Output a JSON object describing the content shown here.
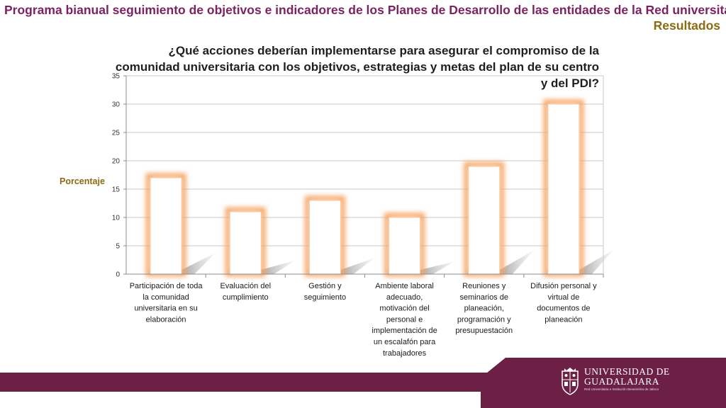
{
  "header": {
    "title": "Programa bianual seguimiento de objetivos e indicadores de los Planes de Desarrollo de las entidades de la Red universitaria",
    "subtitle": "Resultados",
    "title_color": "#7b2360",
    "subtitle_color": "#8a6a12"
  },
  "chart_data": {
    "type": "bar",
    "title": "¿Qué acciones deberían implementarse para asegurar el compromiso de la comunidad universitaria con los objetivos, estrategias y metas del plan de su centro y del PDI?",
    "ylabel": "Porcentaje",
    "xlabel": "",
    "ylim": [
      0,
      35
    ],
    "yticks": [
      0,
      5,
      10,
      15,
      20,
      25,
      30,
      35
    ],
    "grid": true,
    "categories": [
      "Participación de toda la comunidad universitaria en su elaboración",
      "Evaluación del cumplimiento",
      "Gestión y seguimiento",
      "Ambiente laboral adecuado, motivación del personal e implementación de un escalafón para trabajadores",
      "Reuniones y seminarios de planeación, programación y presupuestación",
      "Difusión personal y virtual de documentos de planeación"
    ],
    "category_lines": [
      [
        "Participación de toda",
        "la comunidad",
        "universitaria en su",
        "elaboración"
      ],
      [
        "Evaluación del",
        "cumplimiento"
      ],
      [
        "Gestión y",
        "seguimiento"
      ],
      [
        "Ambiente laboral",
        "adecuado,",
        "motivación del",
        "personal e",
        "implementación de",
        "un escalafón para",
        "trabajadores"
      ],
      [
        "Reuniones y",
        "seminarios de",
        "planeación,",
        "programación y",
        "presupuestación"
      ],
      [
        "Difusión personal y",
        "virtual de",
        "documentos de",
        "planeación"
      ]
    ],
    "values": [
      17,
      11,
      13,
      10,
      19,
      30
    ],
    "bar_fill": "#ffffff",
    "bar_glow": "#f5a76a"
  },
  "footer": {
    "band_color": "#6d2046",
    "logo_line1": "UNIVERSIDAD DE",
    "logo_line2": "GUADALAJARA",
    "logo_tagline": "Red Universitaria e Institución Benemérita de Jalisco",
    "crest_icon": "university-crest-icon"
  }
}
